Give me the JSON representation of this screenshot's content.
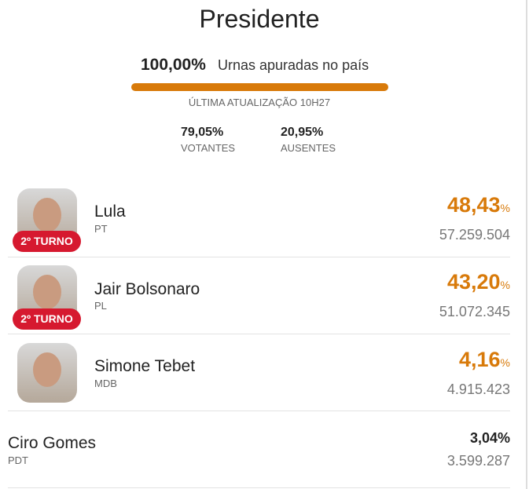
{
  "header": {
    "title": "Presidente",
    "progress_value": "100,00%",
    "progress_label": "Urnas apuradas no país",
    "updated": "ÚLTIMA ATUALIZAÇÃO 10H27"
  },
  "stats": [
    {
      "value": "79,05%",
      "label": "VOTANTES"
    },
    {
      "value": "20,95%",
      "label": "AUSENTES"
    }
  ],
  "candidates": [
    {
      "name": "Lula",
      "party": "PT",
      "percent": "48,43",
      "percent_unit": "%",
      "votes": "57.259.504",
      "badge": "2º TURNO"
    },
    {
      "name": "Jair Bolsonaro",
      "party": "PL",
      "percent": "43,20",
      "percent_unit": "%",
      "votes": "51.072.345",
      "badge": "2º TURNO"
    },
    {
      "name": "Simone Tebet",
      "party": "MDB",
      "percent": "4,16",
      "percent_unit": "%",
      "votes": "4.915.423"
    },
    {
      "name": "Ciro Gomes",
      "party": "PDT",
      "percent": "3,04%",
      "votes": "3.599.287"
    }
  ]
}
